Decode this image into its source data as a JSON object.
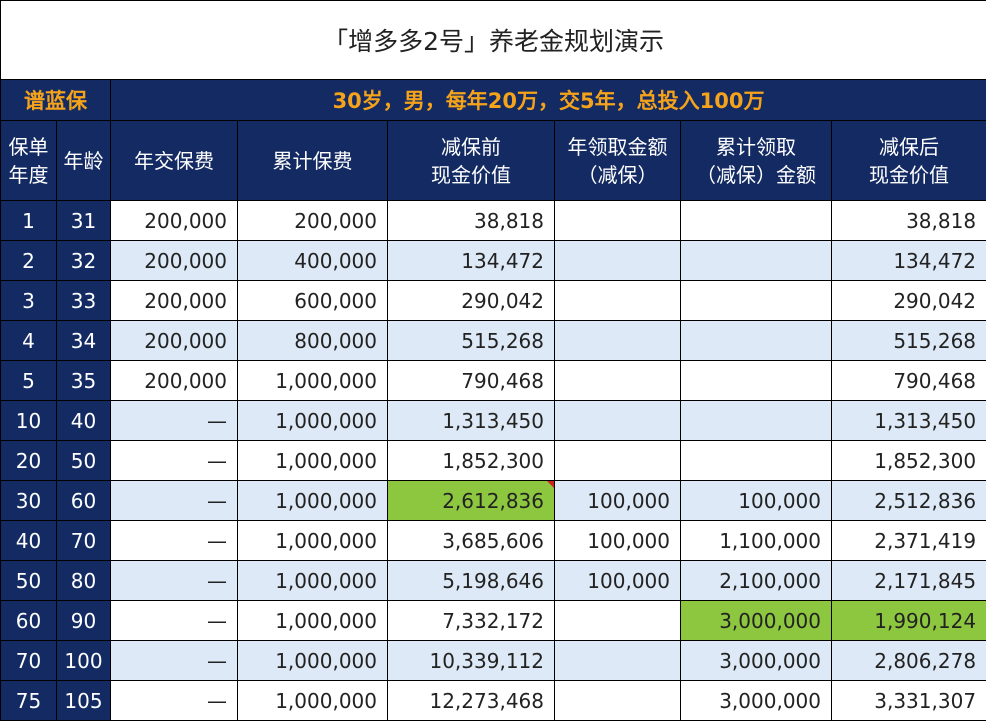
{
  "title": "「增多多2号」养老金规划演示",
  "banner": {
    "brand": "谱蓝保",
    "scenario": "30岁，男，每年20万，交5年，总投入100万"
  },
  "headers": {
    "year": "保单\n年度",
    "age": "年龄",
    "annual_premium": "年交保费",
    "cumulative_premium": "累计保费",
    "cash_value_before": "减保前\n现金价值",
    "annual_withdrawal": "年领取金额\n（减保）",
    "cumulative_withdrawal": "累计领取\n（减保）金额",
    "cash_value_after": "减保后\n现金价值"
  },
  "rows": [
    {
      "year": "1",
      "age": "31",
      "annual_premium": "200,000",
      "cumulative_premium": "200,000",
      "cash_value_before": "38,818",
      "annual_withdrawal": "",
      "cumulative_withdrawal": "",
      "cash_value_after": "38,818"
    },
    {
      "year": "2",
      "age": "32",
      "annual_premium": "200,000",
      "cumulative_premium": "400,000",
      "cash_value_before": "134,472",
      "annual_withdrawal": "",
      "cumulative_withdrawal": "",
      "cash_value_after": "134,472"
    },
    {
      "year": "3",
      "age": "33",
      "annual_premium": "200,000",
      "cumulative_premium": "600,000",
      "cash_value_before": "290,042",
      "annual_withdrawal": "",
      "cumulative_withdrawal": "",
      "cash_value_after": "290,042"
    },
    {
      "year": "4",
      "age": "34",
      "annual_premium": "200,000",
      "cumulative_premium": "800,000",
      "cash_value_before": "515,268",
      "annual_withdrawal": "",
      "cumulative_withdrawal": "",
      "cash_value_after": "515,268"
    },
    {
      "year": "5",
      "age": "35",
      "annual_premium": "200,000",
      "cumulative_premium": "1,000,000",
      "cash_value_before": "790,468",
      "annual_withdrawal": "",
      "cumulative_withdrawal": "",
      "cash_value_after": "790,468"
    },
    {
      "year": "10",
      "age": "40",
      "annual_premium": "—",
      "cumulative_premium": "1,000,000",
      "cash_value_before": "1,313,450",
      "annual_withdrawal": "",
      "cumulative_withdrawal": "",
      "cash_value_after": "1,313,450"
    },
    {
      "year": "20",
      "age": "50",
      "annual_premium": "—",
      "cumulative_premium": "1,000,000",
      "cash_value_before": "1,852,300",
      "annual_withdrawal": "",
      "cumulative_withdrawal": "",
      "cash_value_after": "1,852,300"
    },
    {
      "year": "30",
      "age": "60",
      "annual_premium": "—",
      "cumulative_premium": "1,000,000",
      "cash_value_before": "2,612,836",
      "annual_withdrawal": "100,000",
      "cumulative_withdrawal": "100,000",
      "cash_value_after": "2,512,836"
    },
    {
      "year": "40",
      "age": "70",
      "annual_premium": "—",
      "cumulative_premium": "1,000,000",
      "cash_value_before": "3,685,606",
      "annual_withdrawal": "100,000",
      "cumulative_withdrawal": "1,100,000",
      "cash_value_after": "2,371,419"
    },
    {
      "year": "50",
      "age": "80",
      "annual_premium": "—",
      "cumulative_premium": "1,000,000",
      "cash_value_before": "5,198,646",
      "annual_withdrawal": "100,000",
      "cumulative_withdrawal": "2,100,000",
      "cash_value_after": "2,171,845"
    },
    {
      "year": "60",
      "age": "90",
      "annual_premium": "—",
      "cumulative_premium": "1,000,000",
      "cash_value_before": "7,332,172",
      "annual_withdrawal": "",
      "cumulative_withdrawal": "3,000,000",
      "cash_value_after": "1,990,124"
    },
    {
      "year": "70",
      "age": "100",
      "annual_premium": "—",
      "cumulative_premium": "1,000,000",
      "cash_value_before": "10,339,112",
      "annual_withdrawal": "",
      "cumulative_withdrawal": "3,000,000",
      "cash_value_after": "2,806,278"
    },
    {
      "year": "75",
      "age": "105",
      "annual_premium": "—",
      "cumulative_premium": "1,000,000",
      "cash_value_before": "12,273,468",
      "annual_withdrawal": "",
      "cumulative_withdrawal": "3,000,000",
      "cash_value_after": "3,331,307"
    }
  ],
  "highlights": [
    {
      "row": 7,
      "column": "cash_value_before",
      "color": "#8dc63f",
      "marker": "red-corner-icon"
    },
    {
      "row": 10,
      "column": "cumulative_withdrawal",
      "color": "#8dc63f"
    },
    {
      "row": 10,
      "column": "cash_value_after",
      "color": "#8dc63f"
    }
  ],
  "colors": {
    "header_bg": "#132a63",
    "brand_text": "#f5a31a",
    "alt_row": "#dde9f6",
    "highlight": "#8dc63f"
  }
}
